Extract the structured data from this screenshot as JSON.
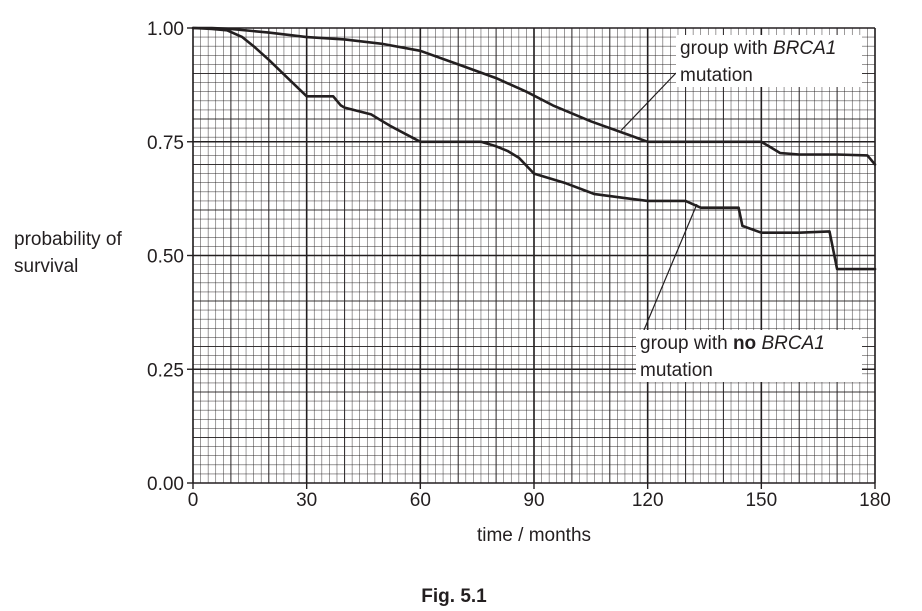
{
  "chart_data": {
    "type": "line",
    "xlabel": "time / months",
    "ylabel_lines": [
      "probability of",
      "survival"
    ],
    "xlim": [
      0,
      180
    ],
    "ylim": [
      0,
      1
    ],
    "x_ticks": [
      "0",
      "30",
      "60",
      "90",
      "120",
      "150",
      "180"
    ],
    "y_ticks": [
      "0.00",
      "0.25",
      "0.50",
      "0.75",
      "1.00"
    ],
    "grid": true,
    "series": [
      {
        "name": "group with BRCA1 mutation",
        "x": [
          0,
          5,
          10,
          20,
          30,
          40,
          50,
          60,
          70,
          80,
          88,
          95,
          105,
          115,
          120,
          130,
          140,
          150,
          152,
          155,
          160,
          170,
          178,
          180
        ],
        "y": [
          1.0,
          1.0,
          0.998,
          0.99,
          0.98,
          0.975,
          0.965,
          0.95,
          0.92,
          0.89,
          0.86,
          0.83,
          0.795,
          0.765,
          0.75,
          0.75,
          0.75,
          0.75,
          0.74,
          0.725,
          0.722,
          0.722,
          0.72,
          0.7
        ]
      },
      {
        "name": "group with no BRCA1 mutation",
        "x": [
          0,
          5,
          9,
          13,
          16,
          20,
          25,
          30,
          37,
          39,
          40,
          47,
          52,
          60,
          70,
          76,
          80,
          83,
          86,
          90,
          98,
          106,
          115,
          120,
          130,
          134,
          136,
          142,
          144,
          145,
          150,
          160,
          168,
          170,
          175,
          180
        ],
        "y": [
          1.0,
          0.998,
          0.995,
          0.98,
          0.96,
          0.93,
          0.89,
          0.85,
          0.85,
          0.83,
          0.825,
          0.81,
          0.785,
          0.75,
          0.75,
          0.75,
          0.74,
          0.73,
          0.715,
          0.68,
          0.66,
          0.635,
          0.625,
          0.62,
          0.62,
          0.605,
          0.605,
          0.605,
          0.605,
          0.565,
          0.55,
          0.55,
          0.553,
          0.47,
          0.47,
          0.47
        ]
      }
    ]
  },
  "annotations": {
    "brca1_line1_prefix": "group with ",
    "brca1_line1_italic": "BRCA1",
    "brca1_line2": "mutation",
    "nobrca_line1_prefix": "group with ",
    "nobrca_line1_bold": "no",
    "nobrca_line1_italic": "BRCA1",
    "nobrca_line2": "mutation"
  },
  "caption": "Fig. 5.1",
  "colors": {
    "grid": "#231f20",
    "line": "#231f20",
    "background": "#ffffff"
  }
}
